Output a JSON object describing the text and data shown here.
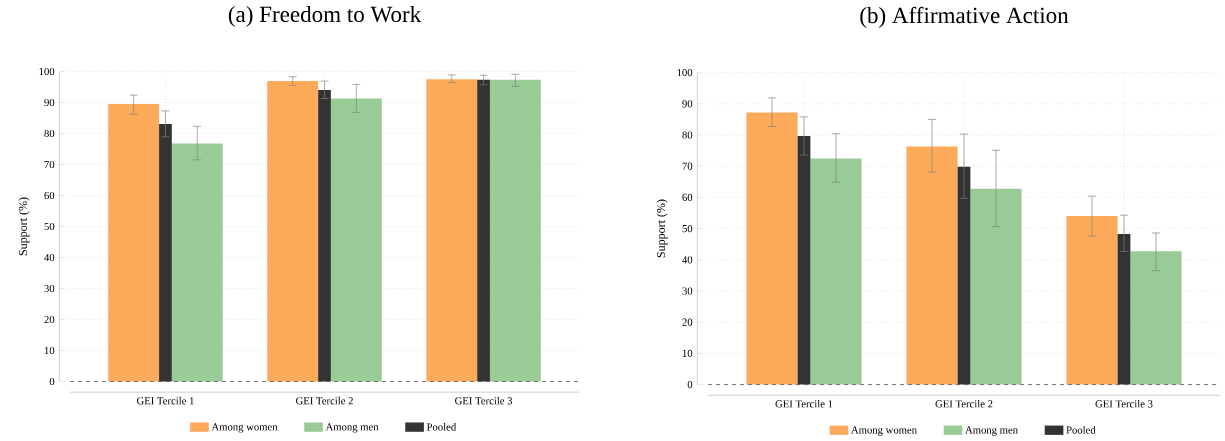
{
  "chart_data": [
    {
      "type": "bar",
      "title": "(a) Freedom to Work",
      "ylabel": "Support (%)",
      "categories": [
        "GEI Tercile 1",
        "GEI Tercile 2",
        "GEI Tercile 3"
      ],
      "series": [
        {
          "name": "Among women",
          "color": "#fdaa5a",
          "values": [
            89.5,
            96.9,
            97.5
          ],
          "errors": [
            [
              86.2,
              92.4
            ],
            [
              95.5,
              98.3
            ],
            [
              96.4,
              98.9
            ]
          ]
        },
        {
          "name": "Among men",
          "color": "#99cb97",
          "values": [
            76.8,
            91.3,
            97.3
          ],
          "errors": [
            [
              71.5,
              82.3
            ],
            [
              86.8,
              95.8
            ],
            [
              95.2,
              99.1
            ]
          ]
        },
        {
          "name": "Pooled",
          "color": "#333333",
          "values": [
            83.1,
            94.0,
            97.3
          ],
          "errors": [
            [
              78.9,
              87.3
            ],
            [
              91.3,
              96.9
            ],
            [
              95.7,
              98.8
            ]
          ]
        }
      ],
      "ylim": [
        0,
        100
      ],
      "yticks": [
        0,
        10,
        20,
        30,
        40,
        50,
        60,
        70,
        80,
        90,
        100
      ],
      "grid": true,
      "legend": "bottom",
      "ref_lines": [
        {
          "axis": "y",
          "value": 0,
          "line_style": "dashed",
          "color": "#555555"
        }
      ]
    },
    {
      "type": "bar",
      "title": "(b) Affirmative Action",
      "ylabel": "Support (%)",
      "categories": [
        "GEI Tercile 1",
        "GEI Tercile 2",
        "GEI Tercile 3"
      ],
      "series": [
        {
          "name": "Among women",
          "color": "#fdaa5a",
          "values": [
            87.2,
            76.3,
            54.0
          ],
          "errors": [
            [
              82.7,
              91.9
            ],
            [
              68.1,
              85.0
            ],
            [
              47.6,
              60.4
            ]
          ]
        },
        {
          "name": "Among men",
          "color": "#99cb97",
          "values": [
            72.5,
            62.8,
            42.7
          ],
          "errors": [
            [
              64.9,
              80.4
            ],
            [
              50.6,
              75.1
            ],
            [
              36.5,
              48.6
            ]
          ]
        },
        {
          "name": "Pooled",
          "color": "#333333",
          "values": [
            79.7,
            69.8,
            48.3
          ],
          "errors": [
            [
              73.6,
              85.8
            ],
            [
              59.7,
              80.3
            ],
            [
              42.7,
              54.3
            ]
          ]
        }
      ],
      "ylim": [
        0,
        100
      ],
      "yticks": [
        0,
        10,
        20,
        30,
        40,
        50,
        60,
        70,
        80,
        90,
        100
      ],
      "grid": true,
      "legend": "bottom",
      "ref_lines": [
        {
          "axis": "y",
          "value": 0,
          "line_style": "dashed",
          "color": "#555555"
        }
      ]
    }
  ]
}
